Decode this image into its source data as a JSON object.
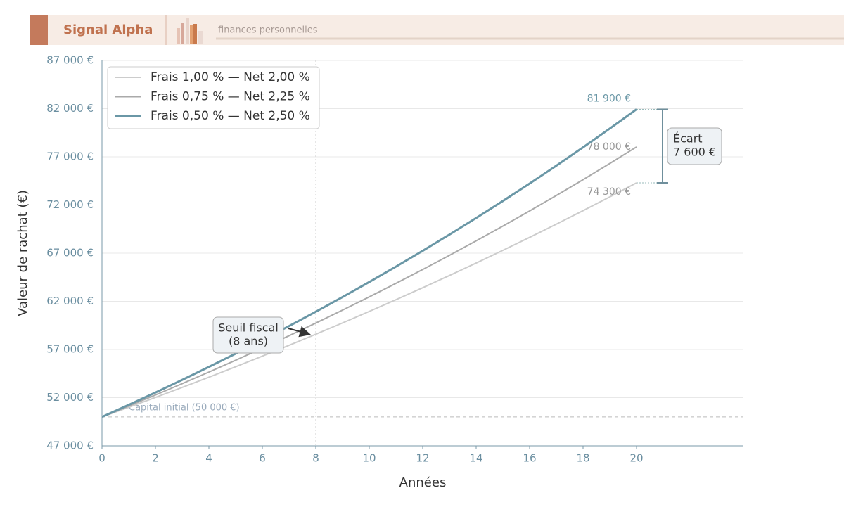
{
  "header": {
    "title": "Signal Alpha",
    "subtitle": "finances personnelles"
  },
  "chart_data": {
    "type": "line",
    "x_label": "Années",
    "y_label": "Valeur de rachat (€)",
    "x": [
      0,
      1,
      2,
      3,
      4,
      5,
      6,
      7,
      8,
      9,
      10,
      11,
      12,
      13,
      14,
      15,
      16,
      17,
      18,
      19,
      20
    ],
    "series": [
      {
        "name": "Frais 1,00 % — Net 2,00 %",
        "color": "#cccccc",
        "width": 2,
        "values": [
          50000,
          51000,
          52020,
          53060,
          54122,
          55204,
          56308,
          57434,
          58583,
          59755,
          60950,
          62169,
          63412,
          64680,
          65974,
          67293,
          68639,
          70012,
          71412,
          72841,
          74297
        ],
        "value_labels": [
          null,
          null,
          null,
          null,
          null,
          null,
          null,
          null,
          null,
          null,
          null,
          null,
          null,
          null,
          null,
          null,
          null,
          null,
          null,
          null,
          "74 300 €"
        ]
      },
      {
        "name": "Frais 0,75 % — Net 2,25 %",
        "color": "#aaaaaa",
        "width": 2,
        "values": [
          50000,
          51125,
          52275,
          53452,
          54654,
          55884,
          57141,
          58427,
          59742,
          61086,
          62460,
          63866,
          65303,
          66772,
          68274,
          69810,
          71381,
          72987,
          74630,
          76309,
          78026
        ],
        "value_labels": [
          null,
          null,
          null,
          null,
          null,
          null,
          null,
          null,
          null,
          null,
          null,
          null,
          null,
          null,
          null,
          null,
          null,
          null,
          null,
          null,
          "78 000 €"
        ]
      },
      {
        "name": "Frais 0,50 % — Net 2,50 %",
        "color": "#6a97a6",
        "width": 3,
        "values": [
          50000,
          51250,
          52531,
          53845,
          55191,
          56570,
          57985,
          59434,
          60920,
          62443,
          64004,
          65604,
          67244,
          68926,
          70649,
          72415,
          74225,
          76081,
          77983,
          79933,
          81931
        ],
        "value_labels": [
          null,
          null,
          null,
          null,
          null,
          null,
          null,
          null,
          null,
          null,
          null,
          null,
          null,
          null,
          null,
          null,
          null,
          null,
          null,
          null,
          "81 900 €"
        ]
      }
    ],
    "xlim": [
      0,
      24
    ],
    "xticks": [
      0,
      2,
      4,
      6,
      8,
      10,
      12,
      14,
      16,
      18,
      20
    ],
    "ylim": [
      47000,
      87000
    ],
    "yticks": [
      {
        "value": 47000,
        "label": "47 000 €"
      },
      {
        "value": 52000,
        "label": "52 000 €"
      },
      {
        "value": 57000,
        "label": "57 000 €"
      },
      {
        "value": 62000,
        "label": "62 000 €"
      },
      {
        "value": 67000,
        "label": "67 000 €"
      },
      {
        "value": 72000,
        "label": "72 000 €"
      },
      {
        "value": 77000,
        "label": "77 000 €"
      },
      {
        "value": 82000,
        "label": "82 000 €"
      },
      {
        "value": 87000,
        "label": "87 000 €"
      }
    ],
    "grid": true,
    "legend": "upper left",
    "annotations": {
      "baseline": {
        "value": 50000,
        "label": "Capital initial (50 000 €)"
      },
      "threshold": {
        "x": 8,
        "label": [
          "Seuil fiscal",
          "(8 ans)"
        ]
      },
      "gap": {
        "value": 7600,
        "label": [
          "Écart",
          "7 600 €"
        ]
      }
    }
  }
}
